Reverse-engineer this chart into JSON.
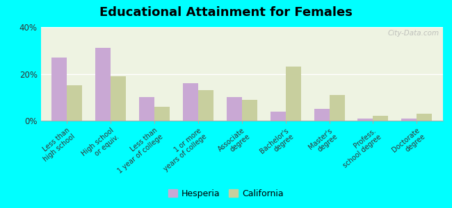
{
  "title": "Educational Attainment for Females",
  "categories": [
    "Less than\nhigh school",
    "High school\nor equiv.",
    "Less than\n1 year of college",
    "1 or more\nyears of college",
    "Associate\ndegree",
    "Bachelor's\ndegree",
    "Master's\ndegree",
    "Profess.\nschool degree",
    "Doctorate\ndegree"
  ],
  "hesperia": [
    27,
    31,
    10,
    16,
    10,
    4,
    5,
    1,
    1
  ],
  "california": [
    15,
    19,
    6,
    13,
    9,
    23,
    11,
    2,
    3
  ],
  "hesperia_color": "#c9a8d4",
  "california_color": "#c8cf9e",
  "background_color": "#00ffff",
  "plot_bg": "#eef3e2",
  "ylim": [
    0,
    40
  ],
  "yticks": [
    0,
    20,
    40
  ],
  "ytick_labels": [
    "0%",
    "20%",
    "40%"
  ],
  "legend_hesperia": "Hesperia",
  "legend_california": "California",
  "watermark": "City-Data.com"
}
